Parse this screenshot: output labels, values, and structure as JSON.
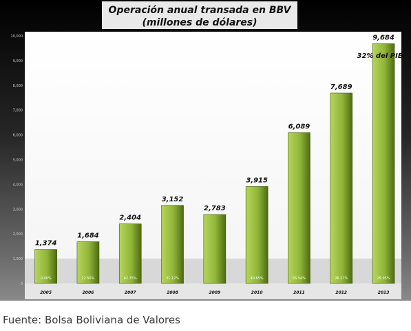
{
  "chart_data": {
    "type": "bar",
    "title_line1": "Operación anual transada en BBV",
    "title_line2": "(millones de dólares)",
    "categories": [
      "2005",
      "2006",
      "2007",
      "2008",
      "2009",
      "2010",
      "2011",
      "2012",
      "2013"
    ],
    "values": [
      1374,
      1684,
      2404,
      3152,
      2783,
      3915,
      6089,
      7689,
      9684
    ],
    "value_labels": [
      "1,374",
      "1,684",
      "2,404",
      "3,152",
      "2,783",
      "3,915",
      "6,089",
      "7,689",
      "9,684"
    ],
    "inner_labels": [
      "0.00%",
      "22.56%",
      "42.75%",
      "31.12%",
      "",
      "40.65%",
      "55.54%",
      "26.27%",
      "25.95%"
    ],
    "annotation": "32% del PIB",
    "y_ticks": [
      "0",
      "1,000",
      "2,000",
      "3,000",
      "4,000",
      "5,000",
      "6,000",
      "7,000",
      "8,000",
      "9,000",
      "10,000"
    ],
    "ylim": [
      0,
      10000
    ],
    "grid": false,
    "colors": {
      "bar_light": "#a6c94a",
      "bar_dark": "#4e6b12",
      "background_top": "#000000",
      "background_bottom": "#dcdcdc"
    }
  },
  "source": "Fuente: Bolsa Boliviana de Valores"
}
